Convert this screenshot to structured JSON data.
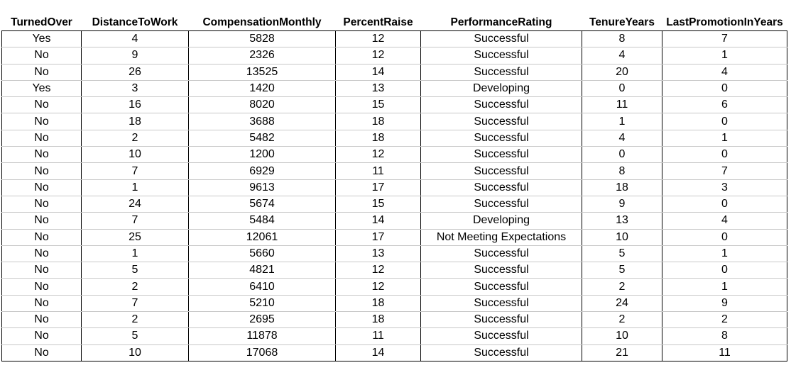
{
  "table": {
    "columns": [
      "TurnedOver",
      "DistanceToWork",
      "CompensationMonthly",
      "PercentRaise",
      "PerformanceRating",
      "TenureYears",
      "LastPromotionInYears"
    ],
    "rows": [
      [
        "Yes",
        "4",
        "5828",
        "12",
        "Successful",
        "8",
        "7"
      ],
      [
        "No",
        "9",
        "2326",
        "12",
        "Successful",
        "4",
        "1"
      ],
      [
        "No",
        "26",
        "13525",
        "14",
        "Successful",
        "20",
        "4"
      ],
      [
        "Yes",
        "3",
        "1420",
        "13",
        "Developing",
        "0",
        "0"
      ],
      [
        "No",
        "16",
        "8020",
        "15",
        "Successful",
        "11",
        "6"
      ],
      [
        "No",
        "18",
        "3688",
        "18",
        "Successful",
        "1",
        "0"
      ],
      [
        "No",
        "2",
        "5482",
        "18",
        "Successful",
        "4",
        "1"
      ],
      [
        "No",
        "10",
        "1200",
        "12",
        "Successful",
        "0",
        "0"
      ],
      [
        "No",
        "7",
        "6929",
        "11",
        "Successful",
        "8",
        "7"
      ],
      [
        "No",
        "1",
        "9613",
        "17",
        "Successful",
        "18",
        "3"
      ],
      [
        "No",
        "24",
        "5674",
        "15",
        "Successful",
        "9",
        "0"
      ],
      [
        "No",
        "7",
        "5484",
        "14",
        "Developing",
        "13",
        "4"
      ],
      [
        "No",
        "25",
        "12061",
        "17",
        "Not Meeting Expectations",
        "10",
        "0"
      ],
      [
        "No",
        "1",
        "5660",
        "13",
        "Successful",
        "5",
        "1"
      ],
      [
        "No",
        "5",
        "4821",
        "12",
        "Successful",
        "5",
        "0"
      ],
      [
        "No",
        "2",
        "6410",
        "12",
        "Successful",
        "2",
        "1"
      ],
      [
        "No",
        "7",
        "5210",
        "18",
        "Successful",
        "24",
        "9"
      ],
      [
        "No",
        "2",
        "2695",
        "18",
        "Successful",
        "2",
        "2"
      ],
      [
        "No",
        "5",
        "11878",
        "11",
        "Successful",
        "10",
        "8"
      ],
      [
        "No",
        "10",
        "17068",
        "14",
        "Successful",
        "21",
        "11"
      ]
    ]
  }
}
